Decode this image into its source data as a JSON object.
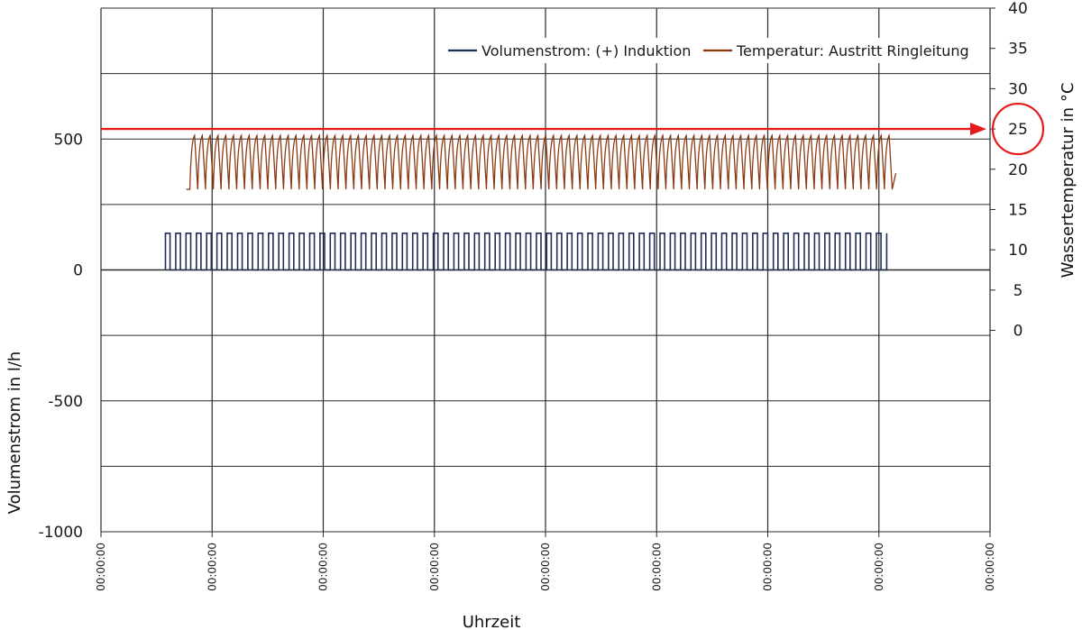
{
  "chart_data": {
    "type": "line",
    "xlabel": "Uhrzeit",
    "ylabel_left": "Volumenstrom  in l/h",
    "ylabel_right": "Wassertemperatur  in °C",
    "x_tick_labels": [
      "00:00:00",
      "00:00:00",
      "00:00:00",
      "00:00:00",
      "00:00:00",
      "00:00:00",
      "00:00:00",
      "00:00:00",
      "00:00:00"
    ],
    "y_left": {
      "range": [
        -1000,
        1000
      ],
      "ticks": [
        500,
        0,
        -500,
        -1000
      ],
      "tick_labels": [
        "500",
        "0",
        "-500",
        "-1000"
      ]
    },
    "y_right": {
      "range": [
        -25,
        40
      ],
      "ticks": [
        40,
        35,
        30,
        25,
        20,
        15,
        10,
        5,
        0
      ],
      "tick_labels": [
        "40",
        "35",
        "30",
        "25",
        "20",
        "15",
        "10",
        "5",
        "0"
      ]
    },
    "grid": true,
    "legend_position": "top-right",
    "series": [
      {
        "name": "Volumenstrom: (+) Induktion",
        "axis": "left",
        "color": "#1f2f55",
        "pattern": "pulse",
        "x_start": 0.58,
        "x_end": 7.07,
        "cycles": 70,
        "low": 0,
        "high": 140
      },
      {
        "name": "Temperatur: Austritt Ringleitung",
        "axis": "right",
        "color": "#8a3a12",
        "pattern": "sawtooth",
        "x_start": 0.8,
        "x_end": 7.12,
        "cycles": 90,
        "min": 17.5,
        "max": 24.2
      }
    ],
    "annotation": {
      "type": "arrow",
      "color": "#e31b1b",
      "y_right": 25,
      "circled_tick": "25"
    }
  }
}
